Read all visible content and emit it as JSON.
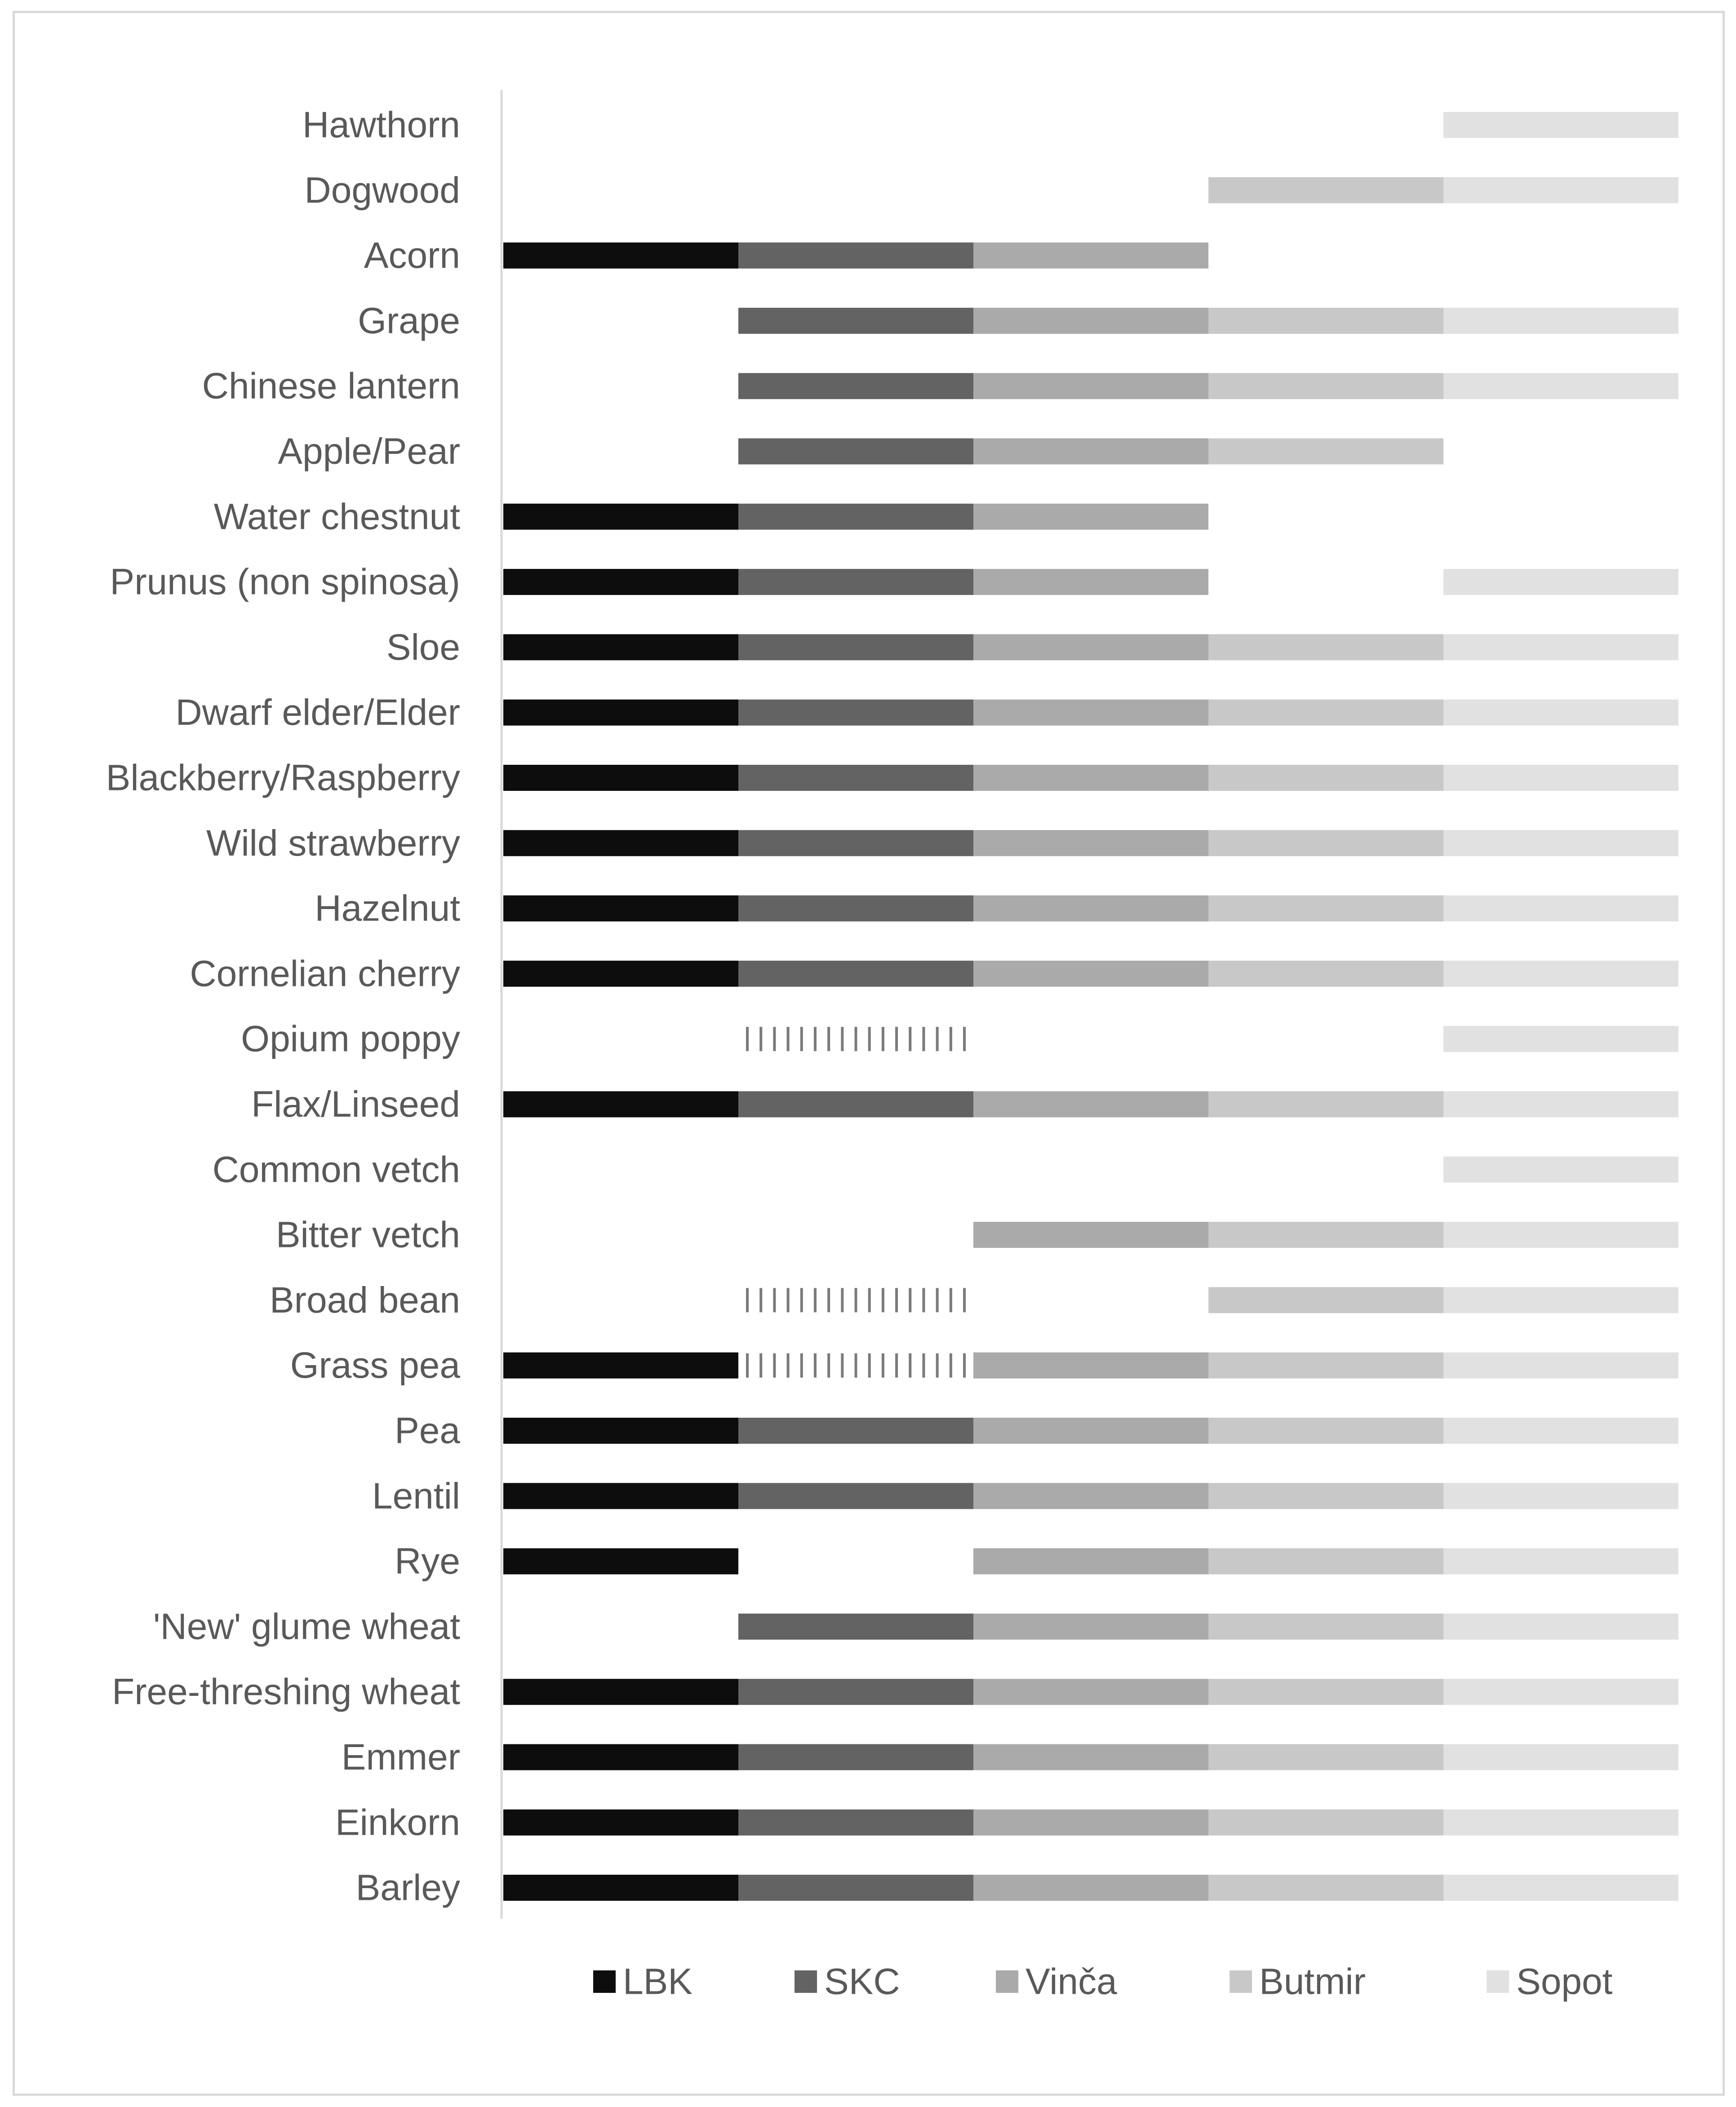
{
  "chart_data": {
    "type": "bar",
    "orientation": "horizontal",
    "stacked": true,
    "title": "",
    "xlabel": "",
    "ylabel": "",
    "x_axis_visible": false,
    "grid": false,
    "legend_position": "bottom",
    "categories": [
      "Hawthorn",
      "Dogwood",
      "Acorn",
      "Grape",
      "Chinese lantern",
      "Apple/Pear",
      "Water chestnut",
      "Prunus (non spinosa)",
      "Sloe",
      "Dwarf elder/Elder",
      "Blackberry/Raspberry",
      "Wild strawberry",
      "Hazelnut",
      "Cornelian cherry",
      "Opium poppy",
      "Flax/Linseed",
      "Common vetch",
      "Bitter vetch",
      "Broad bean",
      "Grass pea",
      "Pea",
      "Lentil",
      "Rye",
      "'New' glume wheat",
      "Free-threshing wheat",
      "Emmer",
      "Einkorn",
      "Barley"
    ],
    "series": [
      {
        "name": "LBK",
        "color": "#0d0d0d",
        "values": [
          0,
          0,
          1,
          0,
          0,
          0,
          1,
          1,
          1,
          1,
          1,
          1,
          1,
          1,
          0,
          1,
          0,
          0,
          0,
          1,
          1,
          1,
          1,
          0,
          1,
          1,
          1,
          1
        ]
      },
      {
        "name": "SKC",
        "color": "#636363",
        "values": [
          0,
          0,
          1,
          1,
          1,
          1,
          1,
          1,
          1,
          1,
          1,
          1,
          1,
          1,
          "uncertain",
          1,
          0,
          0,
          "uncertain",
          "uncertain",
          1,
          1,
          0,
          1,
          1,
          1,
          1,
          1
        ]
      },
      {
        "name": "Vinča",
        "color": "#aaaaaa",
        "values": [
          0,
          0,
          1,
          1,
          1,
          1,
          1,
          1,
          1,
          1,
          1,
          1,
          1,
          1,
          0,
          1,
          0,
          1,
          0,
          1,
          1,
          1,
          1,
          1,
          1,
          1,
          1,
          1
        ]
      },
      {
        "name": "Butmir",
        "color": "#c8c8c8",
        "values": [
          0,
          1,
          0,
          1,
          1,
          1,
          0,
          0,
          1,
          1,
          1,
          1,
          1,
          1,
          0,
          1,
          0,
          1,
          1,
          1,
          1,
          1,
          1,
          1,
          1,
          1,
          1,
          1
        ]
      },
      {
        "name": "Sopot",
        "color": "#e1e1e1",
        "values": [
          1,
          1,
          0,
          1,
          1,
          0,
          0,
          1,
          1,
          1,
          1,
          1,
          1,
          1,
          1,
          1,
          1,
          1,
          1,
          1,
          1,
          1,
          1,
          1,
          1,
          1,
          1,
          1
        ]
      }
    ]
  }
}
